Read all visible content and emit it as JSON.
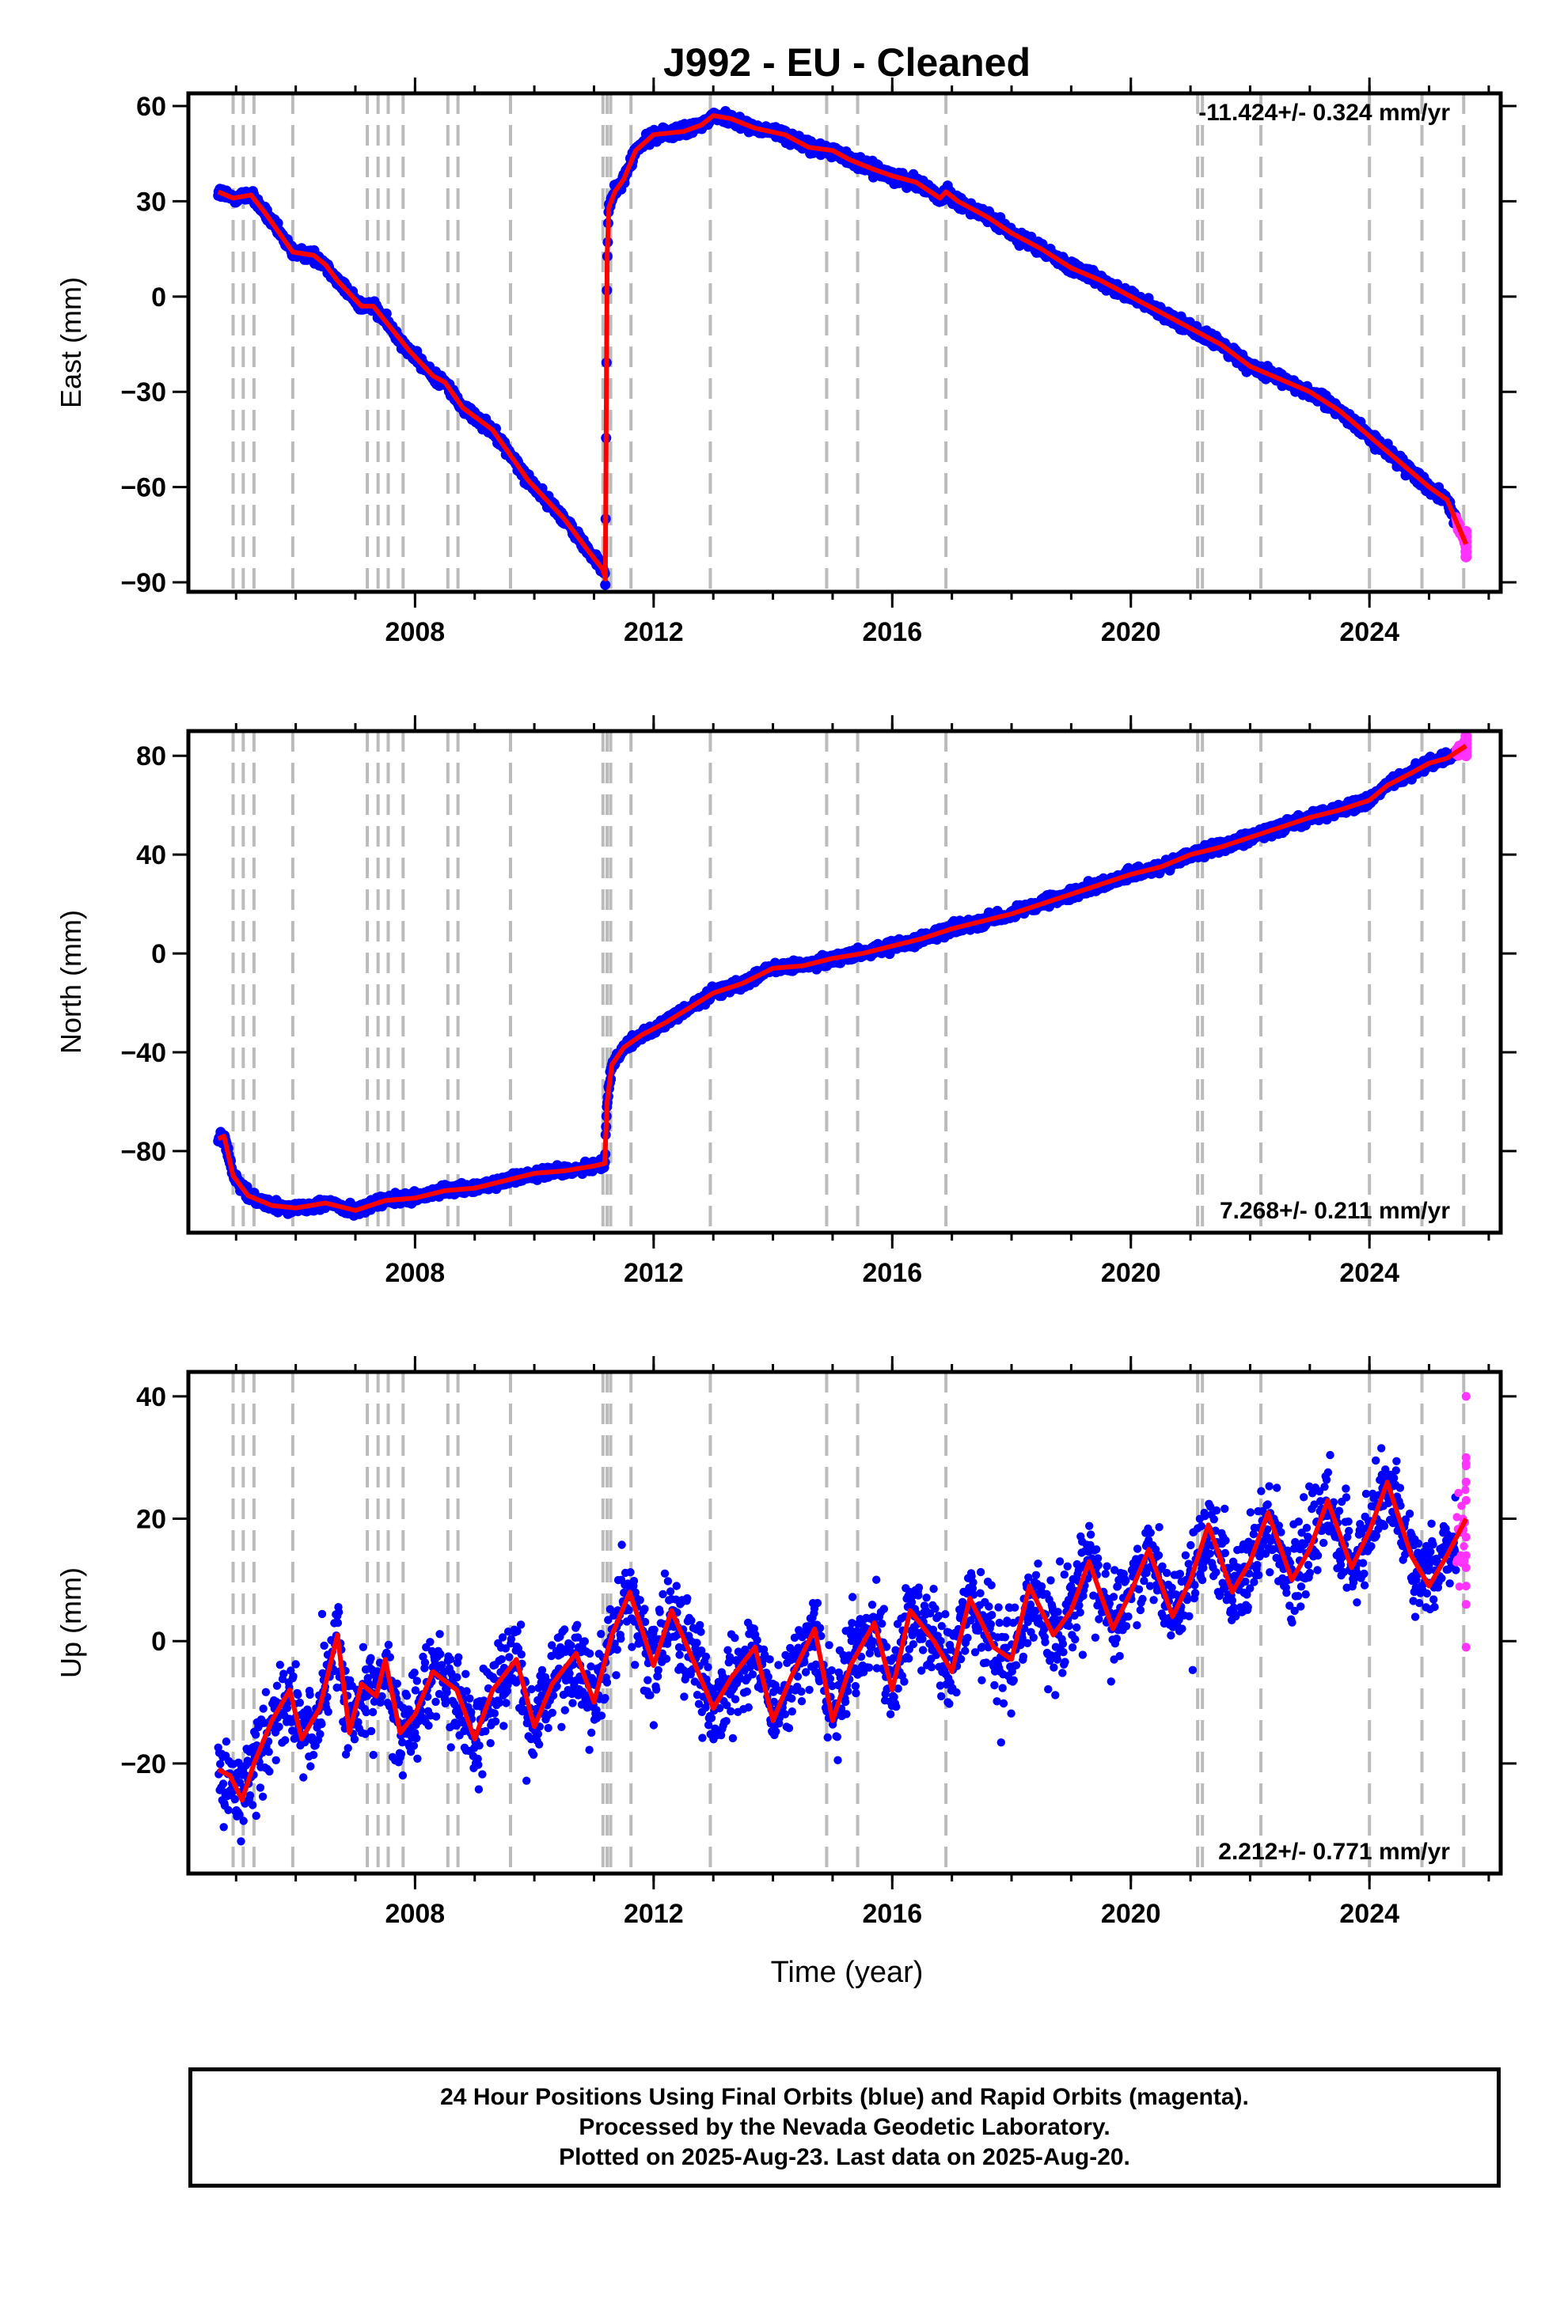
{
  "title": "J992  - EU - Cleaned",
  "x_axis_label": "Time (year)",
  "footer": {
    "line1": "24 Hour Positions Using Final Orbits (blue) and Rapid Orbits (magenta).",
    "line2": "Processed by the Nevada Geodetic Laboratory.",
    "line3": "Plotted on 2025-Aug-23. Last data on 2025-Aug-20."
  },
  "colors": {
    "final_orbits": "#0000ff",
    "rapid_orbits": "#ff33ff",
    "model_fit": "#ff0000",
    "event_lines": "#bbbbbb"
  },
  "event_lines_years": [
    2004.95,
    2005.12,
    2005.3,
    2005.95,
    2007.2,
    2007.38,
    2007.55,
    2007.8,
    2008.55,
    2008.72,
    2009.6,
    2011.15,
    2011.22,
    2011.28,
    2011.62,
    2012.95,
    2014.9,
    2015.42,
    2016.9,
    2021.12,
    2021.2,
    2022.18,
    2024.0,
    2024.88,
    2025.58
  ],
  "chart_data": [
    {
      "type": "scatter",
      "ylabel": "East (mm)",
      "xlim": [
        2004.2,
        2026.2
      ],
      "ylim": [
        -93,
        64
      ],
      "x_ticks": [
        2008,
        2012,
        2016,
        2020,
        2024
      ],
      "y_ticks": [
        -90,
        -60,
        -30,
        0,
        30,
        60
      ],
      "rate_label": "-11.424+/- 0.324 mm/yr",
      "series": [
        {
          "x": [
            2004.7,
            2004.95,
            2005.25,
            2005.5,
            2005.95,
            2006.3,
            2006.5,
            2006.7,
            2007.1,
            2007.3,
            2007.6,
            2007.9,
            2008.3,
            2008.5,
            2008.8,
            2009.3,
            2009.6,
            2009.9,
            2010.5,
            2010.9,
            2011.15,
            2011.19,
            2011.22,
            2011.25,
            2011.35,
            2011.5,
            2011.7,
            2012.0,
            2012.5,
            2012.8,
            2013.0,
            2013.3,
            2013.7,
            2014.2,
            2014.6,
            2015.0,
            2015.3,
            2015.7,
            2016.0,
            2016.4,
            2016.8,
            2016.9,
            2017.1,
            2017.6,
            2018.0,
            2018.5,
            2019.0,
            2019.5,
            2020.0,
            2020.5,
            2021.0,
            2021.5,
            2022.0,
            2022.5,
            2023.0,
            2023.5,
            2024.0,
            2024.5,
            2025.0,
            2025.3,
            2025.62
          ],
          "y": [
            33,
            31,
            32,
            26,
            14,
            13,
            10,
            5,
            -3,
            -3,
            -10,
            -17,
            -25,
            -27,
            -35,
            -42,
            -50,
            -58,
            -70,
            -80,
            -86,
            -89,
            13,
            28,
            33,
            37,
            46,
            51,
            52,
            54,
            57,
            56,
            53,
            51,
            47,
            46,
            43,
            40,
            38,
            36,
            31,
            33,
            30,
            25,
            20,
            15,
            9,
            5,
            0,
            -5,
            -10,
            -15,
            -22,
            -26,
            -30,
            -36,
            -44,
            -52,
            -60,
            -64,
            -78
          ]
        }
      ]
    },
    {
      "type": "scatter",
      "ylabel": "North (mm)",
      "xlim": [
        2004.2,
        2026.2
      ],
      "ylim": [
        -113,
        90
      ],
      "x_ticks": [
        2008,
        2012,
        2016,
        2020,
        2024
      ],
      "y_ticks": [
        -80,
        -40,
        0,
        40,
        80
      ],
      "rate_label": "7.268+/- 0.211 mm/yr",
      "series": [
        {
          "x": [
            2004.7,
            2004.8,
            2004.95,
            2005.2,
            2005.6,
            2006.0,
            2006.5,
            2007.0,
            2007.5,
            2008.0,
            2008.5,
            2009.0,
            2009.5,
            2010.0,
            2010.5,
            2011.0,
            2011.18,
            2011.22,
            2011.3,
            2011.5,
            2011.8,
            2012.2,
            2012.6,
            2013.0,
            2013.5,
            2014.0,
            2014.5,
            2015.0,
            2015.5,
            2016.0,
            2016.5,
            2017.0,
            2017.5,
            2018.0,
            2018.5,
            2019.0,
            2019.5,
            2020.0,
            2020.5,
            2021.0,
            2021.5,
            2022.0,
            2022.5,
            2023.0,
            2023.5,
            2024.0,
            2024.3,
            2024.7,
            2025.0,
            2025.3,
            2025.62
          ],
          "y": [
            -75,
            -74,
            -90,
            -98,
            -102,
            -103,
            -101,
            -104,
            -100,
            -99,
            -96,
            -95,
            -92,
            -89,
            -88,
            -86,
            -85,
            -60,
            -45,
            -38,
            -33,
            -28,
            -22,
            -16,
            -12,
            -6,
            -5,
            -2,
            0,
            3,
            6,
            10,
            13,
            16,
            20,
            24,
            28,
            32,
            35,
            40,
            43,
            47,
            51,
            55,
            58,
            62,
            68,
            73,
            77,
            79,
            84
          ]
        }
      ]
    },
    {
      "type": "scatter",
      "ylabel": "Up (mm)",
      "xlim": [
        2004.2,
        2026.2
      ],
      "ylim": [
        -38,
        44
      ],
      "x_ticks": [
        2008,
        2012,
        2016,
        2020,
        2024
      ],
      "y_ticks": [
        -20,
        0,
        20,
        40
      ],
      "rate_label": "2.212+/- 0.771 mm/yr",
      "series": [
        {
          "x": [
            2004.7,
            2004.9,
            2005.1,
            2005.3,
            2005.6,
            2005.9,
            2006.1,
            2006.4,
            2006.7,
            2006.9,
            2007.1,
            2007.35,
            2007.5,
            2007.75,
            2008.0,
            2008.3,
            2008.7,
            2009.0,
            2009.3,
            2009.7,
            2010.0,
            2010.3,
            2010.7,
            2011.0,
            2011.3,
            2011.6,
            2012.0,
            2012.3,
            2012.7,
            2013.0,
            2013.3,
            2013.7,
            2014.0,
            2014.3,
            2014.7,
            2015.0,
            2015.3,
            2015.7,
            2016.0,
            2016.3,
            2016.7,
            2017.0,
            2017.3,
            2017.7,
            2018.0,
            2018.3,
            2018.7,
            2019.0,
            2019.3,
            2019.7,
            2020.0,
            2020.3,
            2020.7,
            2021.0,
            2021.3,
            2021.7,
            2022.0,
            2022.3,
            2022.7,
            2023.0,
            2023.3,
            2023.7,
            2024.0,
            2024.3,
            2024.7,
            2025.0,
            2025.3,
            2025.62
          ],
          "y": [
            -21,
            -22,
            -26,
            -20,
            -13,
            -8,
            -16,
            -11,
            1,
            -15,
            -7,
            -9,
            -3,
            -15,
            -12,
            -5,
            -8,
            -16,
            -8,
            -3,
            -14,
            -7,
            -2,
            -10,
            1,
            8,
            -4,
            5,
            -4,
            -11,
            -6,
            -1,
            -13,
            -6,
            2,
            -13,
            -4,
            3,
            -8,
            5,
            0,
            -5,
            7,
            -1,
            -3,
            9,
            1,
            5,
            13,
            2,
            8,
            15,
            4,
            10,
            19,
            8,
            13,
            21,
            10,
            15,
            23,
            12,
            18,
            26,
            14,
            9,
            14,
            20
          ]
        }
      ]
    }
  ]
}
